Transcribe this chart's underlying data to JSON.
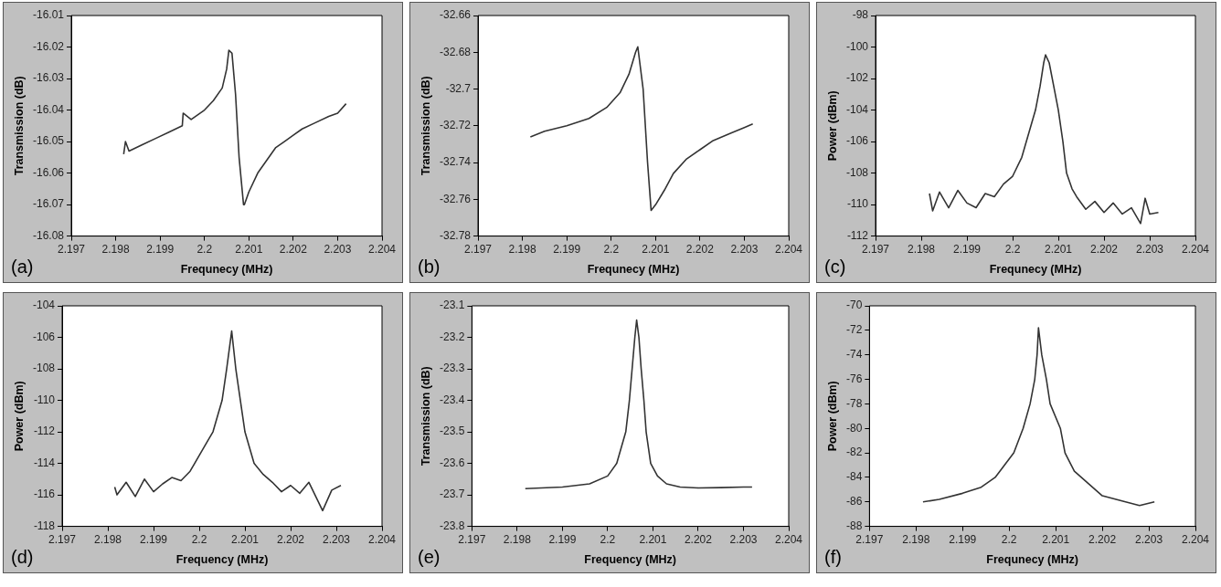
{
  "chart_data": [
    {
      "type": "line",
      "xlabel": "Frequnecy (MHz)",
      "ylabel": "Transmission (dB)",
      "annotations": [
        "(a)"
      ],
      "xlim": [
        2.197,
        2.204
      ],
      "xticks": [
        2.197,
        2.198,
        2.199,
        2.2,
        2.201,
        2.202,
        2.203,
        2.204
      ],
      "ylim": [
        -16.08,
        -16.01
      ],
      "yticks": [
        -16.08,
        -16.07,
        -16.06,
        -16.05,
        -16.04,
        -16.03,
        -16.02,
        -16.01
      ],
      "series": [
        {
          "color": "#333333",
          "x": [
            2.19818,
            2.19822,
            2.1983,
            2.1986,
            2.1989,
            2.1992,
            2.1995,
            2.19952,
            2.1997,
            2.2,
            2.2002,
            2.2004,
            2.2005,
            2.20055,
            2.20062,
            2.2007,
            2.20078,
            2.20088,
            2.2009,
            2.201,
            2.2012,
            2.2014,
            2.2016,
            2.2018,
            2.202,
            2.2022,
            2.2025,
            2.2028,
            2.203,
            2.20319
          ],
          "values": [
            -16.054,
            -16.05,
            -16.053,
            -16.051,
            -16.049,
            -16.047,
            -16.045,
            -16.041,
            -16.043,
            -16.04,
            -16.037,
            -16.033,
            -16.027,
            -16.021,
            -16.022,
            -16.035,
            -16.055,
            -16.07,
            -16.07,
            -16.066,
            -16.06,
            -16.056,
            -16.052,
            -16.05,
            -16.048,
            -16.046,
            -16.044,
            -16.042,
            -16.041,
            -16.038
          ]
        }
      ]
    },
    {
      "type": "line",
      "xlabel": "Frequnecy (MHz)",
      "ylabel": "Transmission (dB)",
      "annotations": [
        "(b)"
      ],
      "xlim": [
        2.197,
        2.204
      ],
      "xticks": [
        2.197,
        2.198,
        2.199,
        2.2,
        2.201,
        2.202,
        2.203,
        2.204
      ],
      "ylim": [
        -32.78,
        -32.66
      ],
      "yticks": [
        -32.78,
        -32.76,
        -32.74,
        -32.72,
        -32.7,
        -32.68,
        -32.66
      ],
      "series": [
        {
          "color": "#333333",
          "x": [
            2.19818,
            2.1985,
            2.199,
            2.1995,
            2.1999,
            2.2002,
            2.2004,
            2.20055,
            2.2006,
            2.20072,
            2.20082,
            2.2009,
            2.201,
            2.2012,
            2.2014,
            2.2017,
            2.202,
            2.2023,
            2.2027,
            2.203,
            2.20319
          ],
          "values": [
            -32.726,
            -32.723,
            -32.72,
            -32.716,
            -32.71,
            -32.702,
            -32.692,
            -32.68,
            -32.677,
            -32.7,
            -32.74,
            -32.766,
            -32.763,
            -32.755,
            -32.746,
            -32.738,
            -32.733,
            -32.728,
            -32.724,
            -32.721,
            -32.719
          ]
        }
      ]
    },
    {
      "type": "line",
      "xlabel": "Frequnecy (MHz)",
      "ylabel": "Power (dBm)",
      "annotations": [
        "(c)"
      ],
      "xlim": [
        2.197,
        2.204
      ],
      "xticks": [
        2.197,
        2.198,
        2.199,
        2.2,
        2.201,
        2.202,
        2.203,
        2.204
      ],
      "ylim": [
        -112,
        -98
      ],
      "yticks": [
        -112,
        -110,
        -108,
        -106,
        -104,
        -102,
        -100,
        -98
      ],
      "series": [
        {
          "color": "#333333",
          "x": [
            2.19818,
            2.19825,
            2.1984,
            2.1986,
            2.1988,
            2.199,
            2.1992,
            2.1994,
            2.1996,
            2.1998,
            2.2,
            2.2002,
            2.2003,
            2.2005,
            2.2006,
            2.20068,
            2.20072,
            2.2008,
            2.2009,
            2.201,
            2.2011,
            2.20118,
            2.2013,
            2.2014,
            2.2016,
            2.2018,
            2.202,
            2.2022,
            2.2024,
            2.2026,
            2.2028,
            2.2029,
            2.203,
            2.20319
          ],
          "values": [
            -109.3,
            -110.4,
            -109.2,
            -110.2,
            -109.1,
            -109.9,
            -110.2,
            -109.3,
            -109.5,
            -108.7,
            -108.2,
            -107,
            -106,
            -104,
            -102.5,
            -101,
            -100.5,
            -101,
            -102.5,
            -104,
            -106,
            -108,
            -109,
            -109.5,
            -110.3,
            -109.8,
            -110.5,
            -109.9,
            -110.6,
            -110.2,
            -111.2,
            -109.6,
            -110.6,
            -110.5
          ]
        }
      ]
    },
    {
      "type": "line",
      "xlabel": "Frequency (MHz)",
      "ylabel": "Power (dBm)",
      "annotations": [
        "(d)"
      ],
      "xlim": [
        2.197,
        2.204
      ],
      "xticks": [
        2.197,
        2.198,
        2.199,
        2.2,
        2.201,
        2.202,
        2.203,
        2.204
      ],
      "ylim": [
        -118,
        -104
      ],
      "yticks": [
        -118,
        -116,
        -114,
        -112,
        -110,
        -108,
        -106,
        -104
      ],
      "series": [
        {
          "color": "#333333",
          "x": [
            2.19815,
            2.1982,
            2.1984,
            2.1986,
            2.1988,
            2.199,
            2.1992,
            2.1994,
            2.1996,
            2.1998,
            2.2,
            2.2002,
            2.2003,
            2.2005,
            2.2006,
            2.20071,
            2.2008,
            2.2009,
            2.201,
            2.2012,
            2.2014,
            2.2016,
            2.2018,
            2.202,
            2.2022,
            2.2024,
            2.2027,
            2.2029,
            2.2031
          ],
          "values": [
            -115.5,
            -116,
            -115.2,
            -116.1,
            -115,
            -115.8,
            -115.3,
            -114.9,
            -115.1,
            -114.5,
            -113.5,
            -112.5,
            -112,
            -110,
            -108,
            -105.6,
            -108,
            -110,
            -112,
            -114,
            -114.7,
            -115.2,
            -115.8,
            -115.4,
            -115.9,
            -115.2,
            -117,
            -115.7,
            -115.4
          ]
        }
      ]
    },
    {
      "type": "line",
      "xlabel": "Frequency (MHz)",
      "ylabel": "Transmission (dB)",
      "annotations": [
        "(e)"
      ],
      "xlim": [
        2.197,
        2.204
      ],
      "xticks": [
        2.197,
        2.198,
        2.199,
        2.2,
        2.201,
        2.202,
        2.203,
        2.204
      ],
      "ylim": [
        -23.8,
        -23.1
      ],
      "yticks": [
        -23.8,
        -23.7,
        -23.6,
        -23.5,
        -23.4,
        -23.3,
        -23.2,
        -23.1
      ],
      "series": [
        {
          "color": "#333333",
          "x": [
            2.19818,
            2.199,
            2.1996,
            2.2,
            2.2002,
            2.2004,
            2.20048,
            2.20054,
            2.2006,
            2.20064,
            2.20069,
            2.20074,
            2.2008,
            2.20085,
            2.20095,
            2.2011,
            2.2013,
            2.2016,
            2.202,
            2.2025,
            2.203,
            2.20319
          ],
          "values": [
            -23.68,
            -23.675,
            -23.665,
            -23.64,
            -23.6,
            -23.5,
            -23.4,
            -23.3,
            -23.2,
            -23.145,
            -23.2,
            -23.3,
            -23.4,
            -23.5,
            -23.6,
            -23.64,
            -23.665,
            -23.675,
            -23.678,
            -23.677,
            -23.675,
            -23.675
          ]
        }
      ]
    },
    {
      "type": "line",
      "xlabel": "Frequnecy (MHz)",
      "ylabel": "Power (dBm)",
      "annotations": [
        "(f)"
      ],
      "xlim": [
        2.197,
        2.204
      ],
      "xticks": [
        2.197,
        2.198,
        2.199,
        2.2,
        2.201,
        2.202,
        2.203,
        2.204
      ],
      "ylim": [
        -88,
        -70
      ],
      "yticks": [
        -88,
        -86,
        -84,
        -82,
        -80,
        -78,
        -76,
        -74,
        -72,
        -70
      ],
      "series": [
        {
          "color": "#333333",
          "x": [
            2.19815,
            2.1985,
            2.199,
            2.1994,
            2.1997,
            2.1999,
            2.2001,
            2.2003,
            2.20045,
            2.20055,
            2.2006,
            2.20063,
            2.2007,
            2.2008,
            2.20088,
            2.2011,
            2.2012,
            2.2014,
            2.2017,
            2.202,
            2.2025,
            2.2028,
            2.20312
          ],
          "values": [
            -86,
            -85.8,
            -85.3,
            -84.8,
            -84,
            -83,
            -82,
            -80,
            -78,
            -76,
            -74,
            -71.8,
            -74,
            -76,
            -78,
            -80,
            -82,
            -83.5,
            -84.5,
            -85.5,
            -86,
            -86.3,
            -86
          ]
        }
      ]
    }
  ]
}
